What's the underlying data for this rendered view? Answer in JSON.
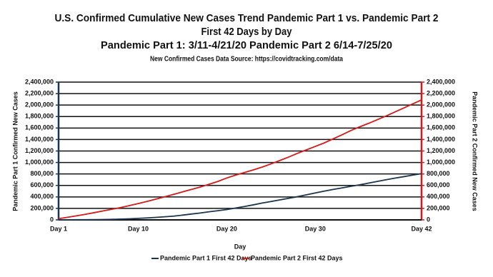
{
  "chart_data": {
    "type": "line",
    "title": [
      "U.S. Confirmed Cumulative New Cases Trend Pandemic Part 1 vs. Pandemic Part 2",
      "First 42 Days by Day",
      "Pandemic Part 1: 3/11-4/21/20 Pandemic Part 2 6/14-7/25/20"
    ],
    "subtitle": "New Confirmed Cases Data Source: https://covidtracking.com/data",
    "xlabel": "Day",
    "ylabel": "Pandemic Part 1 Confirmed New Cases",
    "y2label": "Pandemic Part 2 Confirmed New Cases",
    "categories": [
      "Day 1",
      null,
      null,
      null,
      null,
      null,
      null,
      null,
      null,
      "Day 10",
      null,
      null,
      null,
      null,
      null,
      null,
      null,
      null,
      null,
      "Day 20",
      null,
      null,
      null,
      null,
      null,
      null,
      null,
      null,
      null,
      "Day 30",
      null,
      null,
      null,
      null,
      null,
      null,
      null,
      null,
      null,
      null,
      null,
      "Day 42"
    ],
    "series": [
      {
        "name": "Pandemic Part 1 First 42 Days",
        "color": "#1c3550",
        "values": [
          1000,
          1700,
          2300,
          3100,
          4500,
          5900,
          8500,
          13000,
          19000,
          26000,
          34000,
          44000,
          54000,
          65000,
          83000,
          102000,
          120000,
          141000,
          160000,
          180000,
          207000,
          233000,
          262000,
          294000,
          320000,
          348000,
          376000,
          405000,
          437000,
          469000,
          500000,
          530000,
          557000,
          584000,
          610000,
          640000,
          670000,
          700000,
          727000,
          753000,
          780000,
          805000
        ]
      },
      {
        "name": "Pandemic Part 2 First 42 Days",
        "color": "#d41a1a",
        "axis": "y2",
        "values": [
          20000,
          45000,
          70000,
          97000,
          125000,
          155000,
          185000,
          215000,
          248000,
          285000,
          322000,
          362000,
          402000,
          445000,
          488000,
          530000,
          572000,
          620000,
          670000,
          730000,
          780000,
          825000,
          870000,
          920000,
          975000,
          1035000,
          1095000,
          1160000,
          1220000,
          1280000,
          1340000,
          1410000,
          1480000,
          1555000,
          1620000,
          1680000,
          1745000,
          1810000,
          1880000,
          1950000,
          2020000,
          2090000
        ]
      }
    ],
    "ylim": [
      0,
      2400000
    ],
    "yticks": [
      {
        "value": 0,
        "label": "0"
      },
      {
        "value": 200000,
        "label": "200,000"
      },
      {
        "value": 400000,
        "label": "400,000"
      },
      {
        "value": 600000,
        "label": "600,000"
      },
      {
        "value": 800000,
        "label": "800,000"
      },
      {
        "value": 1000000,
        "label": "1,000,000"
      },
      {
        "value": 1200000,
        "label": "1,200,000"
      },
      {
        "value": 1400000,
        "label": "1,400,000"
      },
      {
        "value": 1600000,
        "label": "1,600,000"
      },
      {
        "value": 1800000,
        "label": "1,800,000"
      },
      {
        "value": 2000000,
        "label": "2,000,000"
      },
      {
        "value": 2200000,
        "label": "2,200,000"
      },
      {
        "value": 2400000,
        "label": "2,400,000"
      }
    ],
    "y2lim": [
      0,
      2400000
    ],
    "y2ticks": [
      {
        "value": 0,
        "label": "0"
      },
      {
        "value": 200000,
        "label": "200,000"
      },
      {
        "value": 400000,
        "label": "400,000"
      },
      {
        "value": 600000,
        "label": "600,000"
      },
      {
        "value": 800000,
        "label": "800,000"
      },
      {
        "value": 1000000,
        "label": "1,000,000"
      },
      {
        "value": 1200000,
        "label": "1,200,000"
      },
      {
        "value": 1400000,
        "label": "1,400,000"
      },
      {
        "value": 1600000,
        "label": "1,600,000"
      },
      {
        "value": 1800000,
        "label": "1,800,000"
      },
      {
        "value": 2000000,
        "label": "2,000,000"
      },
      {
        "value": 2200000,
        "label": "2,200,000"
      },
      {
        "value": 2400000,
        "label": "2,400,000"
      }
    ],
    "grid": true,
    "legend": "bottom"
  }
}
